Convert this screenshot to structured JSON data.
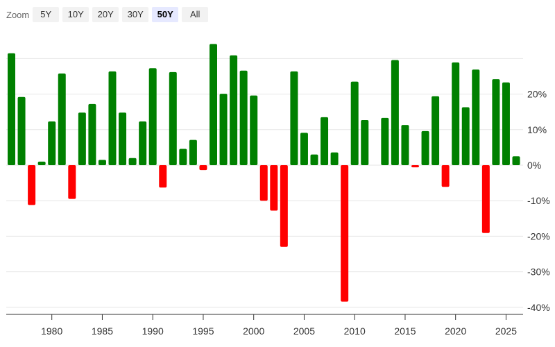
{
  "zoom": {
    "label": "Zoom",
    "buttons": [
      {
        "label": "5Y",
        "active": false
      },
      {
        "label": "10Y",
        "active": false
      },
      {
        "label": "20Y",
        "active": false
      },
      {
        "label": "30Y",
        "active": false
      },
      {
        "label": "50Y",
        "active": true
      },
      {
        "label": "All",
        "active": false
      }
    ]
  },
  "colors": {
    "positive": "#008000",
    "negative": "#ff0000",
    "grid": "#e6e6e6",
    "axis": "#333333"
  },
  "chart_data": {
    "type": "bar",
    "title": "",
    "xlabel": "",
    "ylabel": "",
    "ylim": [
      -40,
      30
    ],
    "xlim": [
      1975.5,
      2026.5
    ],
    "y_ticks": [
      20,
      10,
      0,
      -10,
      -20,
      -30,
      -40
    ],
    "y_tick_labels": [
      "20%",
      "10%",
      "0%",
      "-10%",
      "-20%",
      "-30%",
      "-40%"
    ],
    "x_ticks": [
      1980,
      1985,
      1990,
      1995,
      2000,
      2005,
      2010,
      2015,
      2020,
      2025
    ],
    "x_tick_labels": [
      "1980",
      "1985",
      "1990",
      "1995",
      "2000",
      "2005",
      "2010",
      "2015",
      "2020",
      "2025"
    ],
    "grid": true,
    "legend": "none",
    "categories": [
      1976,
      1977,
      1978,
      1979,
      1980,
      1981,
      1982,
      1983,
      1984,
      1985,
      1986,
      1987,
      1988,
      1989,
      1990,
      1991,
      1992,
      1993,
      1994,
      1995,
      1996,
      1997,
      1998,
      1999,
      2000,
      2001,
      2002,
      2003,
      2004,
      2005,
      2006,
      2007,
      2008,
      2009,
      2010,
      2011,
      2012,
      2013,
      2014,
      2015,
      2016,
      2017,
      2018,
      2019,
      2020,
      2021,
      2022,
      2023,
      2024,
      2025,
      2026
    ],
    "values": [
      31.5,
      19.2,
      -11.2,
      1.0,
      12.3,
      25.8,
      -9.5,
      14.8,
      17.2,
      1.5,
      26.4,
      14.8,
      2.0,
      12.3,
      27.3,
      -6.3,
      26.2,
      4.6,
      7.1,
      -1.4,
      34.1,
      20.1,
      30.9,
      26.6,
      19.6,
      -10.0,
      -12.8,
      -23.0,
      26.4,
      9.1,
      3.0,
      13.5,
      3.6,
      -38.4,
      23.5,
      12.7,
      0,
      13.3,
      29.6,
      11.3,
      -0.6,
      9.6,
      19.4,
      -6.1,
      28.9,
      16.3,
      26.9,
      -19.1,
      24.2,
      23.3,
      2.5
    ]
  }
}
